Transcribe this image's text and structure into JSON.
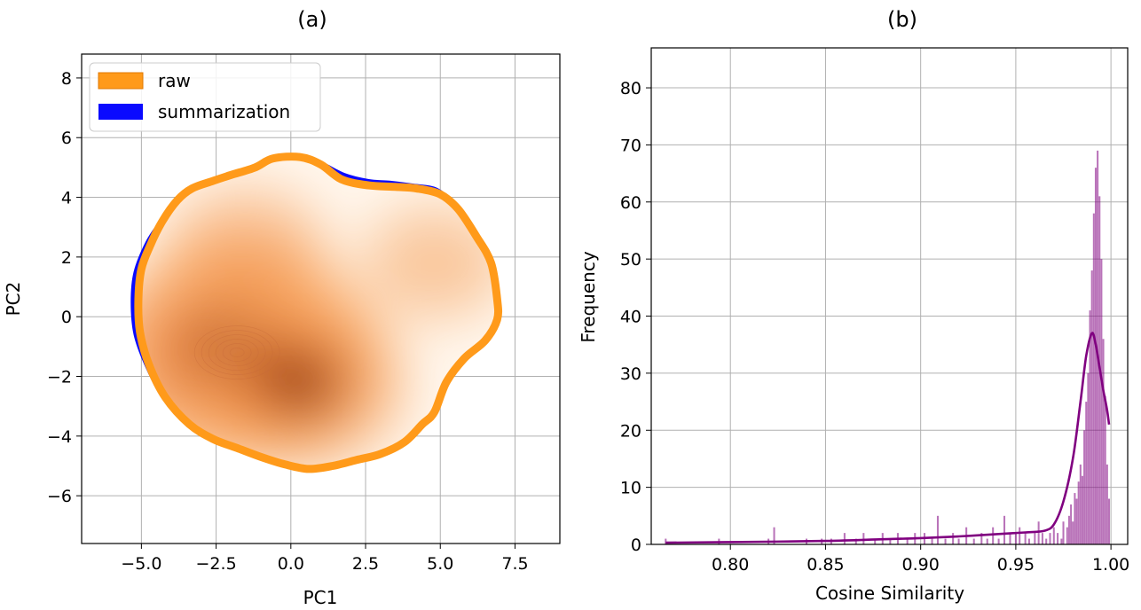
{
  "chart_data": [
    {
      "panel_title": "(a)",
      "type": "kde-contour",
      "xlabel": "PC1",
      "ylabel": "PC2",
      "xlim": [
        -7.0,
        9.0
      ],
      "ylim": [
        -7.6,
        8.8
      ],
      "xticks": [
        -5.0,
        -2.5,
        0.0,
        2.5,
        5.0,
        7.5
      ],
      "xtick_labels": [
        "−5.0",
        "−2.5",
        "0.0",
        "2.5",
        "5.0",
        "7.5"
      ],
      "yticks": [
        -6,
        -4,
        -2,
        0,
        2,
        4,
        6,
        8
      ],
      "ytick_labels": [
        "−6",
        "−4",
        "−2",
        "0",
        "2",
        "4",
        "6",
        "8"
      ],
      "grid": true,
      "legend_position": "upper-left",
      "series": [
        {
          "name": "raw",
          "color": "#ff9a1a",
          "boundary": [
            [
              6.9,
              0.6
            ],
            [
              6.7,
              1.8
            ],
            [
              6.2,
              2.7
            ],
            [
              5.6,
              3.6
            ],
            [
              5.0,
              4.1
            ],
            [
              4.2,
              4.3
            ],
            [
              3.5,
              4.35
            ],
            [
              2.6,
              4.4
            ],
            [
              1.7,
              4.6
            ],
            [
              1.0,
              5.1
            ],
            [
              0.3,
              5.35
            ],
            [
              -0.6,
              5.3
            ],
            [
              -1.2,
              5.0
            ],
            [
              -2.0,
              4.75
            ],
            [
              -2.6,
              4.55
            ],
            [
              -3.3,
              4.3
            ],
            [
              -3.8,
              3.9
            ],
            [
              -4.3,
              3.2
            ],
            [
              -4.7,
              2.4
            ],
            [
              -5.0,
              1.6
            ],
            [
              -5.1,
              0.6
            ],
            [
              -5.05,
              -0.5
            ],
            [
              -4.75,
              -1.6
            ],
            [
              -4.2,
              -2.7
            ],
            [
              -3.4,
              -3.6
            ],
            [
              -2.6,
              -4.1
            ],
            [
              -1.8,
              -4.4
            ],
            [
              -1.0,
              -4.7
            ],
            [
              -0.2,
              -4.95
            ],
            [
              0.6,
              -5.1
            ],
            [
              1.4,
              -5.0
            ],
            [
              2.2,
              -4.8
            ],
            [
              3.0,
              -4.6
            ],
            [
              3.8,
              -4.2
            ],
            [
              4.4,
              -3.6
            ],
            [
              4.8,
              -3.2
            ],
            [
              5.2,
              -2.2
            ],
            [
              5.8,
              -1.4
            ],
            [
              6.5,
              -0.8
            ],
            [
              6.9,
              -0.1
            ]
          ]
        },
        {
          "name": "summarization",
          "color": "#0a0aff",
          "boundary": [
            [
              6.75,
              0.6
            ],
            [
              6.55,
              1.8
            ],
            [
              6.05,
              2.75
            ],
            [
              5.5,
              3.7
            ],
            [
              4.9,
              4.25
            ],
            [
              4.1,
              4.4
            ],
            [
              3.3,
              4.5
            ],
            [
              2.6,
              4.55
            ],
            [
              1.8,
              4.75
            ],
            [
              1.0,
              5.15
            ],
            [
              0.2,
              5.4
            ],
            [
              -0.6,
              5.35
            ],
            [
              -1.2,
              5.05
            ],
            [
              -2.0,
              4.8
            ],
            [
              -2.6,
              4.55
            ],
            [
              -3.3,
              4.3
            ],
            [
              -3.8,
              3.9
            ],
            [
              -4.3,
              3.25
            ],
            [
              -4.8,
              2.5
            ],
            [
              -5.2,
              1.5
            ],
            [
              -5.3,
              0.5
            ],
            [
              -5.2,
              -0.6
            ],
            [
              -4.8,
              -1.7
            ],
            [
              -4.2,
              -2.8
            ],
            [
              -3.4,
              -3.6
            ],
            [
              -2.6,
              -4.05
            ],
            [
              -1.8,
              -4.3
            ],
            [
              -1.0,
              -4.55
            ],
            [
              -0.2,
              -4.7
            ],
            [
              0.6,
              -4.75
            ],
            [
              1.4,
              -4.75
            ],
            [
              2.2,
              -4.55
            ],
            [
              3.0,
              -4.4
            ],
            [
              3.8,
              -4.05
            ],
            [
              4.5,
              -3.5
            ],
            [
              5.0,
              -2.7
            ],
            [
              5.45,
              -1.85
            ],
            [
              6.0,
              -1.2
            ],
            [
              6.55,
              -0.6
            ],
            [
              6.75,
              0.0
            ]
          ]
        }
      ],
      "density_centers": [
        {
          "x": -1.8,
          "y": -1.2,
          "weight": 1.0
        },
        {
          "x": 0.3,
          "y": -2.2,
          "weight": 0.6
        },
        {
          "x": -1.5,
          "y": 2.2,
          "weight": 0.3
        },
        {
          "x": 4.8,
          "y": 1.8,
          "weight": 0.2
        }
      ],
      "density_colors": [
        "#ffffff",
        "#fde0c1",
        "#f9a45e",
        "#e36414",
        "#a63603",
        "#7f2704"
      ]
    },
    {
      "panel_title": "(b)",
      "type": "histogram",
      "xlabel": "Cosine Similarity",
      "ylabel": "Frequency",
      "xlim": [
        0.7584,
        1.0088
      ],
      "ylim": [
        0,
        87
      ],
      "xticks": [
        0.8,
        0.85,
        0.9,
        0.95,
        1.0
      ],
      "xtick_labels": [
        "0.80",
        "0.85",
        "0.90",
        "0.95",
        "1.00"
      ],
      "yticks": [
        0,
        10,
        20,
        30,
        40,
        50,
        60,
        70,
        80
      ],
      "ytick_labels": [
        "0",
        "10",
        "20",
        "30",
        "40",
        "50",
        "60",
        "70",
        "80"
      ],
      "grid": true,
      "bar_color": "#800080",
      "kde_color": "#800080",
      "bins": [
        {
          "x": 0.766,
          "count": 1
        },
        {
          "x": 0.794,
          "count": 1
        },
        {
          "x": 0.82,
          "count": 1
        },
        {
          "x": 0.823,
          "count": 3
        },
        {
          "x": 0.84,
          "count": 1
        },
        {
          "x": 0.848,
          "count": 1
        },
        {
          "x": 0.853,
          "count": 1
        },
        {
          "x": 0.86,
          "count": 2
        },
        {
          "x": 0.866,
          "count": 1
        },
        {
          "x": 0.87,
          "count": 2
        },
        {
          "x": 0.876,
          "count": 1
        },
        {
          "x": 0.88,
          "count": 2
        },
        {
          "x": 0.884,
          "count": 1
        },
        {
          "x": 0.888,
          "count": 2
        },
        {
          "x": 0.893,
          "count": 1
        },
        {
          "x": 0.897,
          "count": 2
        },
        {
          "x": 0.902,
          "count": 2
        },
        {
          "x": 0.906,
          "count": 1
        },
        {
          "x": 0.909,
          "count": 5
        },
        {
          "x": 0.913,
          "count": 1
        },
        {
          "x": 0.917,
          "count": 2
        },
        {
          "x": 0.92,
          "count": 1
        },
        {
          "x": 0.924,
          "count": 3
        },
        {
          "x": 0.928,
          "count": 1
        },
        {
          "x": 0.932,
          "count": 2
        },
        {
          "x": 0.935,
          "count": 1
        },
        {
          "x": 0.938,
          "count": 3
        },
        {
          "x": 0.941,
          "count": 1
        },
        {
          "x": 0.944,
          "count": 5
        },
        {
          "x": 0.947,
          "count": 2
        },
        {
          "x": 0.95,
          "count": 2
        },
        {
          "x": 0.952,
          "count": 3
        },
        {
          "x": 0.955,
          "count": 2
        },
        {
          "x": 0.957,
          "count": 1
        },
        {
          "x": 0.96,
          "count": 2
        },
        {
          "x": 0.962,
          "count": 4
        },
        {
          "x": 0.964,
          "count": 2
        },
        {
          "x": 0.966,
          "count": 1
        },
        {
          "x": 0.968,
          "count": 2
        },
        {
          "x": 0.97,
          "count": 3
        },
        {
          "x": 0.972,
          "count": 2
        },
        {
          "x": 0.974,
          "count": 1
        },
        {
          "x": 0.975,
          "count": 4
        },
        {
          "x": 0.977,
          "count": 3
        },
        {
          "x": 0.978,
          "count": 5
        },
        {
          "x": 0.979,
          "count": 7
        },
        {
          "x": 0.98,
          "count": 4
        },
        {
          "x": 0.981,
          "count": 9
        },
        {
          "x": 0.982,
          "count": 8
        },
        {
          "x": 0.983,
          "count": 11
        },
        {
          "x": 0.984,
          "count": 14
        },
        {
          "x": 0.985,
          "count": 12
        },
        {
          "x": 0.986,
          "count": 20
        },
        {
          "x": 0.987,
          "count": 25
        },
        {
          "x": 0.988,
          "count": 30
        },
        {
          "x": 0.989,
          "count": 41
        },
        {
          "x": 0.99,
          "count": 48
        },
        {
          "x": 0.991,
          "count": 58
        },
        {
          "x": 0.992,
          "count": 66
        },
        {
          "x": 0.993,
          "count": 69
        },
        {
          "x": 0.994,
          "count": 61
        },
        {
          "x": 0.995,
          "count": 50
        },
        {
          "x": 0.996,
          "count": 36
        },
        {
          "x": 0.997,
          "count": 26
        },
        {
          "x": 0.998,
          "count": 14
        },
        {
          "x": 0.999,
          "count": 8
        }
      ],
      "kde": [
        {
          "x": 0.766,
          "y": 0.3
        },
        {
          "x": 0.8,
          "y": 0.4
        },
        {
          "x": 0.85,
          "y": 0.6
        },
        {
          "x": 0.88,
          "y": 0.9
        },
        {
          "x": 0.9,
          "y": 1.1
        },
        {
          "x": 0.92,
          "y": 1.4
        },
        {
          "x": 0.94,
          "y": 1.8
        },
        {
          "x": 0.955,
          "y": 2.1
        },
        {
          "x": 0.965,
          "y": 2.4
        },
        {
          "x": 0.97,
          "y": 3.5
        },
        {
          "x": 0.975,
          "y": 7.5
        },
        {
          "x": 0.98,
          "y": 15
        },
        {
          "x": 0.984,
          "y": 25
        },
        {
          "x": 0.987,
          "y": 33
        },
        {
          "x": 0.99,
          "y": 37
        },
        {
          "x": 0.992,
          "y": 35
        },
        {
          "x": 0.994,
          "y": 31
        },
        {
          "x": 0.996,
          "y": 27
        },
        {
          "x": 0.998,
          "y": 23.5
        },
        {
          "x": 0.999,
          "y": 21
        }
      ]
    }
  ]
}
